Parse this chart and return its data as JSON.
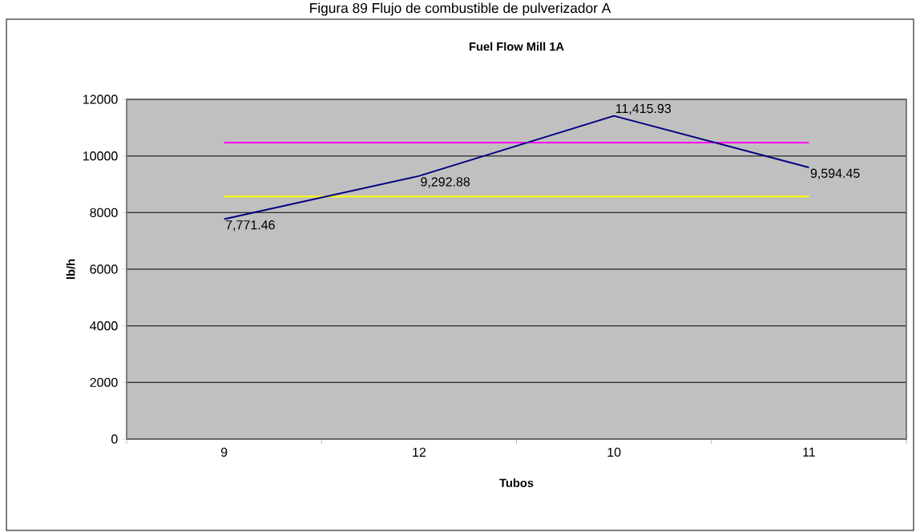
{
  "chart_data": {
    "type": "line",
    "title": "Fuel Flow Mill 1A",
    "xlabel": "Tubos",
    "ylabel": "lb/h",
    "categories": [
      "9",
      "12",
      "10",
      "11"
    ],
    "series": [
      {
        "color": "#000080",
        "values": [
          7771.46,
          9292.88,
          11415.93,
          9594.45
        ],
        "value_labels": [
          "7,771.46",
          "9,292.88",
          "11,415.93",
          "9,594.45"
        ]
      }
    ],
    "ref_lines": [
      {
        "axis": "y",
        "value": 10471,
        "color": "#ff00ff"
      },
      {
        "axis": "y",
        "value": 8567,
        "color": "#ffff00"
      }
    ],
    "ylim": [
      0,
      12000
    ],
    "yticks": [
      0,
      2000,
      4000,
      6000,
      8000,
      10000,
      12000
    ],
    "grid": "y",
    "marker": "none",
    "line_style": "solid",
    "annotations": [
      "Figura  89 Flujo de combustible de pulverizador A"
    ]
  }
}
